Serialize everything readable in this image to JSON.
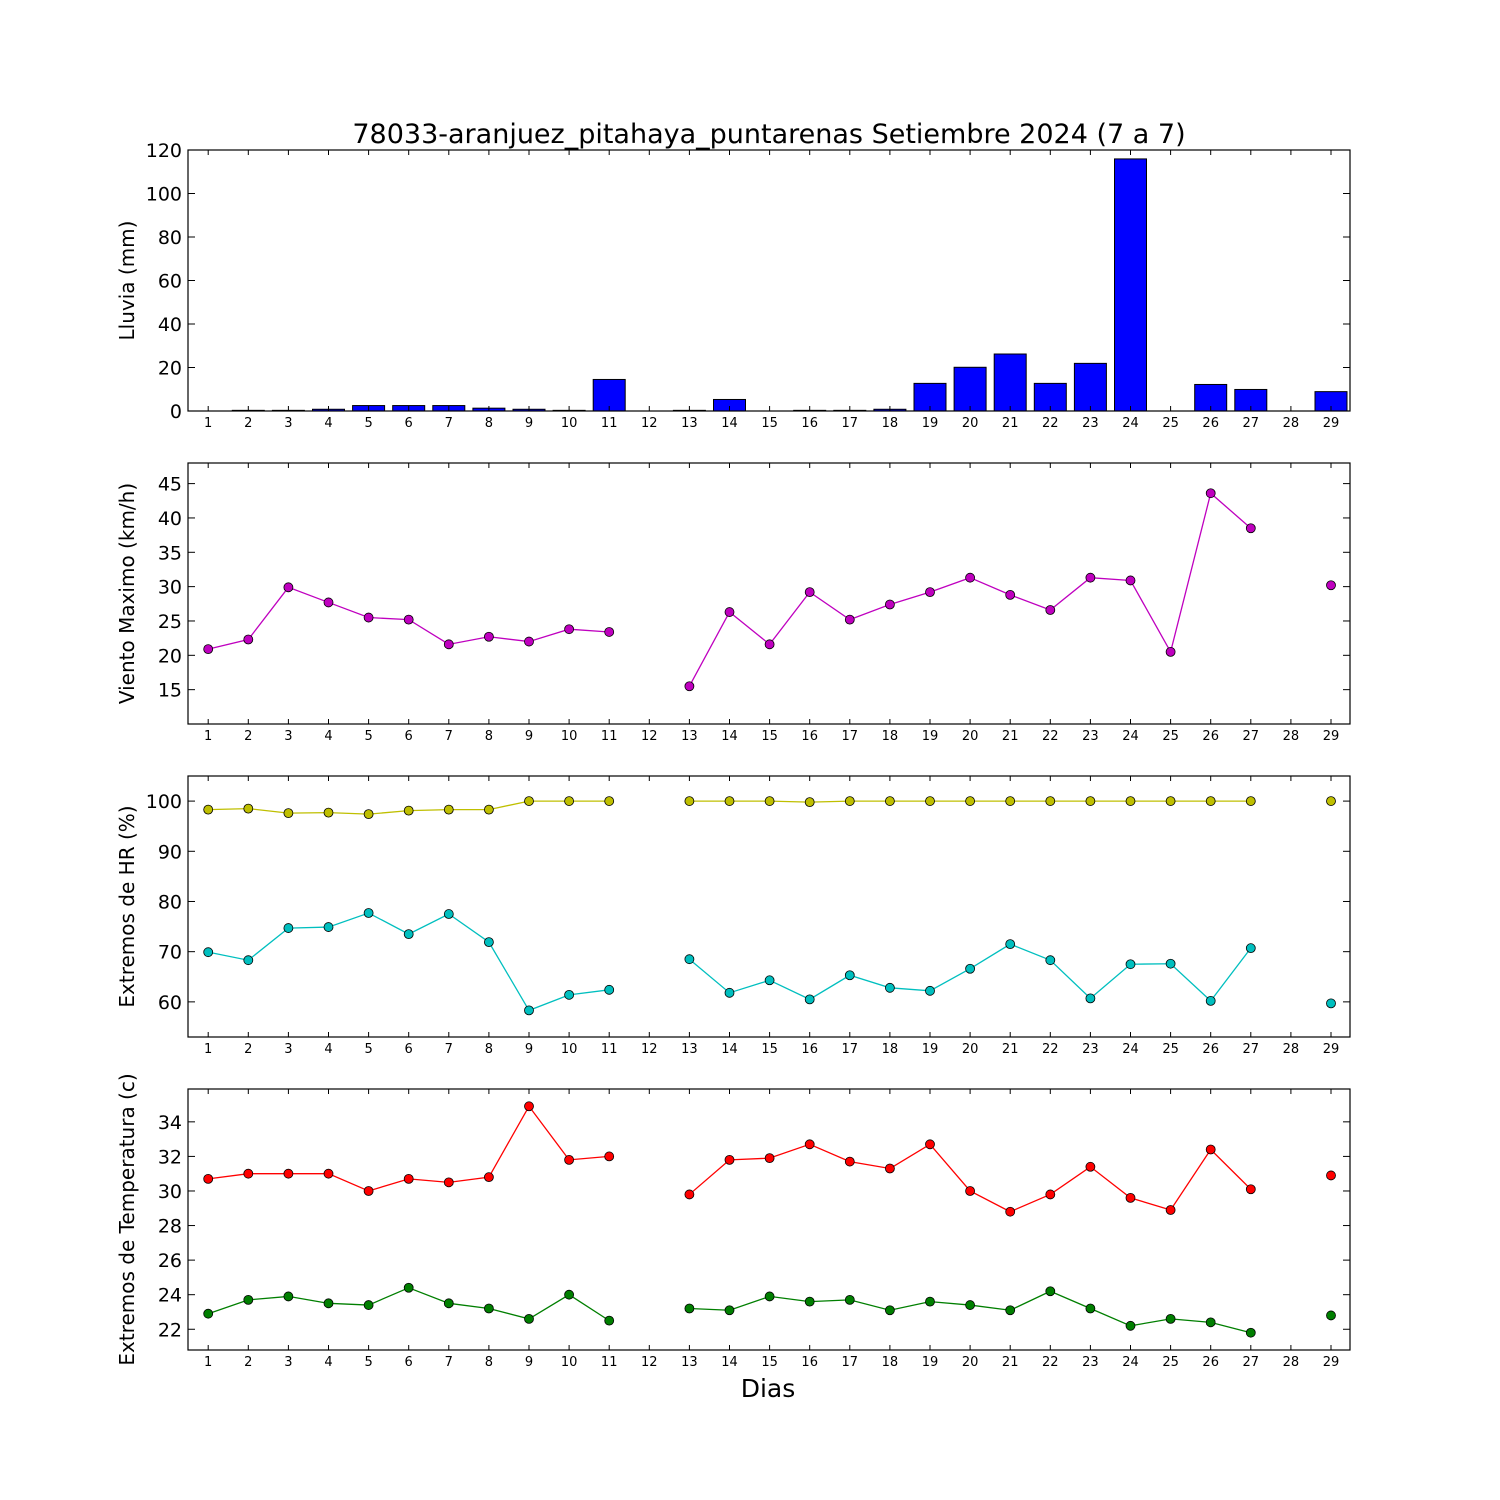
{
  "chart_data": [
    {
      "type": "bar",
      "title": "78033-aranjuez_pitahaya_puntarenas Setiembre 2024  (7 a 7)",
      "ylabel": "Lluvia (mm)",
      "xlabel": "",
      "ylim": [
        0,
        120
      ],
      "yticks": [
        0,
        20,
        40,
        60,
        80,
        100,
        120
      ],
      "categories": [
        "1",
        "2",
        "3",
        "4",
        "5",
        "6",
        "7",
        "8",
        "9",
        "10",
        "11",
        "12",
        "13",
        "14",
        "15",
        "16",
        "17",
        "18",
        "19",
        "20",
        "21",
        "22",
        "23",
        "24",
        "25",
        "26",
        "27",
        "28",
        "29"
      ],
      "series": [
        {
          "color": "#0000ff",
          "values": [
            0,
            0.3,
            0.3,
            0.8,
            2.5,
            2.5,
            2.5,
            1.3,
            0.8,
            0.3,
            14.5,
            0,
            0.3,
            5.3,
            0,
            0.3,
            0.3,
            0.8,
            12.7,
            20.1,
            26.2,
            12.7,
            21.9,
            115.9,
            0,
            12.2,
            9.9,
            0,
            8.9
          ]
        }
      ]
    },
    {
      "type": "line",
      "ylabel": "Viento Maximo (km/h)",
      "xlabel": "",
      "ylim": [
        10,
        48
      ],
      "yticks": [
        15,
        20,
        25,
        30,
        35,
        40,
        45
      ],
      "categories": [
        "1",
        "2",
        "3",
        "4",
        "5",
        "6",
        "7",
        "8",
        "9",
        "10",
        "11",
        "12",
        "13",
        "14",
        "15",
        "16",
        "17",
        "18",
        "19",
        "20",
        "21",
        "22",
        "23",
        "24",
        "25",
        "26",
        "27",
        "28",
        "29"
      ],
      "series": [
        {
          "color": "#bf00bf",
          "values": [
            20.9,
            22.3,
            29.9,
            27.7,
            25.5,
            25.2,
            21.6,
            22.7,
            22.0,
            23.8,
            23.4,
            null,
            15.5,
            26.3,
            21.6,
            29.2,
            25.2,
            27.4,
            29.2,
            31.3,
            28.8,
            26.6,
            31.3,
            30.9,
            20.5,
            43.6,
            38.5,
            null,
            30.2
          ]
        }
      ]
    },
    {
      "type": "line",
      "ylabel": "Extremos de HR (%)",
      "xlabel": "",
      "ylim": [
        53,
        105
      ],
      "yticks": [
        60,
        70,
        80,
        90,
        100
      ],
      "categories": [
        "1",
        "2",
        "3",
        "4",
        "5",
        "6",
        "7",
        "8",
        "9",
        "10",
        "11",
        "12",
        "13",
        "14",
        "15",
        "16",
        "17",
        "18",
        "19",
        "20",
        "21",
        "22",
        "23",
        "24",
        "25",
        "26",
        "27",
        "28",
        "29"
      ],
      "series": [
        {
          "color": "#bfbf00",
          "values": [
            98.3,
            98.5,
            97.6,
            97.7,
            97.4,
            98.1,
            98.3,
            98.3,
            100,
            100,
            100,
            null,
            100,
            100,
            100,
            99.8,
            100,
            100,
            100,
            100,
            100,
            100,
            100,
            100,
            100,
            100,
            100,
            null,
            100
          ]
        },
        {
          "color": "#00bfbf",
          "values": [
            69.9,
            68.3,
            74.7,
            74.9,
            77.7,
            73.5,
            77.5,
            71.9,
            58.3,
            61.4,
            62.4,
            null,
            68.5,
            61.8,
            64.3,
            60.5,
            65.3,
            62.8,
            62.2,
            66.6,
            71.5,
            68.3,
            60.7,
            67.5,
            67.6,
            60.2,
            70.7,
            null,
            59.7
          ]
        }
      ]
    },
    {
      "type": "line",
      "ylabel": "Extremos de Temperatura (c)",
      "xlabel": "Dias",
      "ylim": [
        20.8,
        35.9
      ],
      "yticks": [
        22,
        24,
        26,
        28,
        30,
        32,
        34
      ],
      "categories": [
        "1",
        "2",
        "3",
        "4",
        "5",
        "6",
        "7",
        "8",
        "9",
        "10",
        "11",
        "12",
        "13",
        "14",
        "15",
        "16",
        "17",
        "18",
        "19",
        "20",
        "21",
        "22",
        "23",
        "24",
        "25",
        "26",
        "27",
        "28",
        "29"
      ],
      "series": [
        {
          "color": "#ff0000",
          "values": [
            30.7,
            31.0,
            31.0,
            31.0,
            30.0,
            30.7,
            30.5,
            30.8,
            34.9,
            31.8,
            32.0,
            null,
            29.8,
            31.8,
            31.9,
            32.7,
            31.7,
            31.3,
            32.7,
            30.0,
            28.8,
            29.8,
            31.4,
            29.6,
            28.9,
            32.4,
            30.1,
            null,
            30.9
          ]
        },
        {
          "color": "#007f00",
          "values": [
            22.9,
            23.7,
            23.9,
            23.5,
            23.4,
            24.4,
            23.5,
            23.2,
            22.6,
            24.0,
            22.5,
            null,
            23.2,
            23.1,
            23.9,
            23.6,
            23.7,
            23.1,
            23.6,
            23.4,
            23.1,
            24.2,
            23.2,
            22.2,
            22.6,
            22.4,
            21.8,
            null,
            22.8
          ]
        }
      ]
    }
  ]
}
